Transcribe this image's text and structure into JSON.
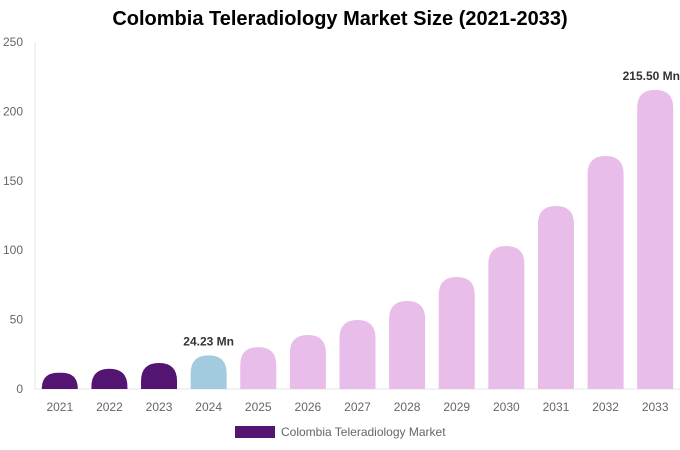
{
  "chart_data": {
    "type": "bar",
    "title": "Colombia Teleradiology Market Size (2021-2033)",
    "categories": [
      "2021",
      "2022",
      "2023",
      "2024",
      "2025",
      "2026",
      "2027",
      "2028",
      "2029",
      "2030",
      "2031",
      "2032",
      "2033"
    ],
    "series": [
      {
        "name": "Colombia Teleradiology Market",
        "values": [
          11.7,
          14.6,
          18.7,
          24.23,
          30.2,
          38.9,
          49.7,
          63.4,
          80.7,
          103.0,
          131.8,
          167.9,
          215.5
        ]
      }
    ],
    "data_labels": [
      {
        "category": "2024",
        "text": "24.23 Mn"
      },
      {
        "category": "2033",
        "text": "215.50 Mn"
      }
    ],
    "ylim": [
      0,
      250
    ],
    "yticks": [
      0,
      50,
      100,
      150,
      200,
      250
    ],
    "grid": false,
    "legend_position": "bottom",
    "colors": {
      "historical": "#541472",
      "base_year": "#a3cbe0",
      "forecast": "#e8bde9"
    },
    "bar_color_groups": [
      "historical",
      "historical",
      "historical",
      "base_year",
      "forecast",
      "forecast",
      "forecast",
      "forecast",
      "forecast",
      "forecast",
      "forecast",
      "forecast",
      "forecast"
    ]
  }
}
